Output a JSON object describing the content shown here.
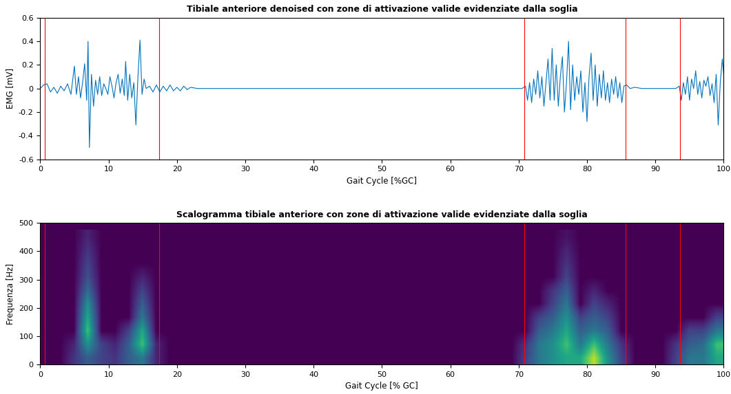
{
  "chart_data": [
    {
      "type": "line",
      "title": "Tibiale anteriore denoised con zone di attivazione valide evidenziate dalla soglia",
      "x_label": "Gait Cycle [%GC]",
      "y_label": "EMG [mV]",
      "color": "#0072bd",
      "x": [
        0,
        0.5,
        1,
        1.5,
        2,
        2.5,
        3,
        3.5,
        4,
        4.5,
        5,
        5.3,
        5.6,
        5.9,
        6.2,
        6.5,
        6.8,
        7.0,
        7.2,
        7.5,
        7.8,
        8.1,
        8.4,
        8.7,
        9.0,
        9.3,
        9.6,
        9.9,
        10.2,
        10.5,
        10.8,
        11.1,
        11.4,
        11.7,
        12.0,
        12.3,
        12.5,
        12.8,
        13.1,
        13.4,
        13.7,
        14.0,
        14.3,
        14.6,
        14.9,
        15.2,
        15.5,
        16.0,
        16.5,
        17.0,
        17.5,
        18,
        18.5,
        19,
        19.5,
        20,
        20.5,
        21,
        21.5,
        22,
        23,
        70.5,
        71,
        71.3,
        71.6,
        71.9,
        72.2,
        72.5,
        72.8,
        73.1,
        73.4,
        73.7,
        74,
        74.3,
        74.6,
        74.9,
        75.2,
        75.5,
        75.8,
        76.1,
        76.4,
        76.7,
        77.0,
        77.3,
        77.6,
        77.9,
        78.2,
        78.5,
        78.8,
        79.1,
        79.4,
        79.7,
        80.0,
        80.3,
        80.6,
        80.9,
        81.2,
        81.5,
        81.8,
        82.1,
        82.4,
        82.7,
        83.0,
        83.3,
        83.6,
        83.9,
        84.2,
        84.5,
        84.8,
        85.1,
        85.4,
        85.8,
        86.3,
        87,
        88,
        93,
        93.5,
        93.8,
        94.1,
        94.4,
        94.7,
        95.0,
        95.3,
        95.6,
        95.9,
        96.2,
        96.5,
        96.8,
        97.1,
        97.4,
        97.7,
        98.0,
        98.3,
        98.6,
        98.9,
        99.2,
        99.5,
        99.8,
        100
      ],
      "values": [
        0,
        0.03,
        0.04,
        -0.03,
        0.01,
        -0.04,
        0.02,
        -0.02,
        0.04,
        -0.05,
        0.19,
        -0.05,
        0.1,
        -0.08,
        0.05,
        0.21,
        -0.1,
        0.4,
        -0.5,
        0.12,
        -0.15,
        0.07,
        -0.05,
        0.1,
        -0.06,
        0.04,
        0.0,
        -0.05,
        0.1,
        0.02,
        -0.08,
        0.05,
        0.12,
        -0.04,
        0.08,
        -0.06,
        0.23,
        -0.1,
        0.12,
        -0.08,
        0.05,
        -0.31,
        0.1,
        0.41,
        -0.05,
        0.08,
        0.0,
        0.02,
        -0.03,
        0.03,
        -0.03,
        0.02,
        -0.02,
        0.03,
        -0.02,
        0.01,
        -0.02,
        0.02,
        -0.01,
        0.01,
        0,
        0,
        0.02,
        -0.1,
        0.05,
        -0.12,
        0.08,
        -0.05,
        0.15,
        -0.08,
        0.1,
        -0.15,
        0.05,
        0.25,
        -0.1,
        0.34,
        -0.1,
        0.2,
        -0.15,
        0.1,
        0.27,
        -0.2,
        0.05,
        0.4,
        -0.18,
        0.2,
        -0.1,
        0.1,
        -0.05,
        0.15,
        -0.2,
        0.05,
        -0.28,
        0.1,
        0.3,
        -0.1,
        0.2,
        -0.15,
        0.12,
        -0.08,
        0.15,
        -0.1,
        0.05,
        -0.12,
        0.08,
        -0.05,
        0.1,
        -0.08,
        0.05,
        -0.12,
        0.02,
        0.03,
        0.0,
        0.01,
        0,
        0,
        0.02,
        -0.1,
        0.05,
        -0.05,
        0.1,
        -0.1,
        0.08,
        0.0,
        0.15,
        -0.05,
        0.06,
        -0.08,
        0.07,
        0.02,
        0.1,
        -0.06,
        0.04,
        -0.12,
        0.12,
        -0.31,
        0.05,
        0.25,
        0.12
      ],
      "activation_bounds": [
        0.7,
        17.4,
        70.8,
        85.6,
        93.6,
        100
      ],
      "xlim": [
        0,
        100
      ],
      "ylim": [
        -0.6,
        0.6
      ],
      "xticks": [
        0,
        10,
        20,
        30,
        40,
        50,
        60,
        70,
        80,
        90,
        100
      ],
      "yticks": [
        -0.6,
        -0.4,
        -0.2,
        0,
        0.2,
        0.4,
        0.6
      ]
    },
    {
      "type": "heatmap",
      "title": "Scalogramma tibiale anteriore con zone di attivazione valide evidenziate dalla soglia",
      "x_label": "Gait Cycle [% GC]",
      "y_label": "Frequenza [Hz]",
      "cells_x_range": [
        0,
        100
      ],
      "cells_y_range": [
        0,
        475
      ],
      "color_range": [
        0,
        1
      ],
      "cells": [
        [
          0,
          0,
          0.15,
          0.3,
          0.2,
          0.15,
          0.3,
          0.4,
          0.1,
          0,
          0,
          0,
          0,
          0,
          0,
          0,
          0,
          0,
          0,
          0,
          0,
          0,
          0,
          0,
          0,
          0,
          0,
          0,
          0,
          0,
          0,
          0,
          0,
          0,
          0,
          0.2,
          0.4,
          0.5,
          0.6,
          0.6,
          0.9,
          0.5,
          0.2,
          0,
          0,
          0,
          0.2,
          0.4,
          0.4,
          0.6
        ],
        [
          0,
          0,
          0.1,
          0.5,
          0.2,
          0.1,
          0.3,
          0.7,
          0.1,
          0,
          0,
          0,
          0,
          0,
          0,
          0,
          0,
          0,
          0,
          0,
          0,
          0,
          0,
          0,
          0,
          0,
          0,
          0,
          0,
          0,
          0,
          0,
          0,
          0,
          0,
          0.15,
          0.4,
          0.5,
          0.7,
          0.4,
          0.7,
          0.4,
          0.15,
          0,
          0,
          0,
          0.15,
          0.3,
          0.35,
          0.7
        ],
        [
          0,
          0,
          0,
          0.7,
          0,
          0,
          0.2,
          0.6,
          0,
          0,
          0,
          0,
          0,
          0,
          0,
          0,
          0,
          0,
          0,
          0,
          0,
          0,
          0,
          0,
          0,
          0,
          0,
          0,
          0,
          0,
          0,
          0,
          0,
          0,
          0,
          0,
          0.3,
          0.4,
          0.6,
          0.3,
          0.4,
          0.3,
          0,
          0,
          0,
          0,
          0,
          0.2,
          0.2,
          0.4
        ],
        [
          0,
          0,
          0,
          0.6,
          0,
          0,
          0,
          0.4,
          0,
          0,
          0,
          0,
          0,
          0,
          0,
          0,
          0,
          0,
          0,
          0,
          0,
          0,
          0,
          0,
          0,
          0,
          0,
          0,
          0,
          0,
          0,
          0,
          0,
          0,
          0,
          0,
          0.2,
          0.3,
          0.5,
          0.2,
          0.3,
          0.2,
          0,
          0,
          0,
          0,
          0,
          0,
          0,
          0.2
        ],
        [
          0,
          0,
          0,
          0.5,
          0,
          0,
          0,
          0.3,
          0,
          0,
          0,
          0,
          0,
          0,
          0,
          0,
          0,
          0,
          0,
          0,
          0,
          0,
          0,
          0,
          0,
          0,
          0,
          0,
          0,
          0,
          0,
          0,
          0,
          0,
          0,
          0,
          0,
          0.2,
          0.4,
          0,
          0.2,
          0.1,
          0,
          0,
          0,
          0,
          0,
          0,
          0,
          0
        ],
        [
          0,
          0,
          0,
          0.35,
          0,
          0,
          0,
          0.2,
          0,
          0,
          0,
          0,
          0,
          0,
          0,
          0,
          0,
          0,
          0,
          0,
          0,
          0,
          0,
          0,
          0,
          0,
          0,
          0,
          0,
          0,
          0,
          0,
          0,
          0,
          0,
          0,
          0,
          0.15,
          0.3,
          0,
          0.1,
          0,
          0,
          0,
          0,
          0,
          0,
          0,
          0,
          0
        ],
        [
          0,
          0,
          0,
          0.25,
          0,
          0,
          0,
          0.1,
          0,
          0,
          0,
          0,
          0,
          0,
          0,
          0,
          0,
          0,
          0,
          0,
          0,
          0,
          0,
          0,
          0,
          0,
          0,
          0,
          0,
          0,
          0,
          0,
          0,
          0,
          0,
          0,
          0,
          0,
          0.2,
          0,
          0,
          0,
          0,
          0,
          0,
          0,
          0,
          0,
          0,
          0
        ],
        [
          0,
          0,
          0,
          0.2,
          0,
          0,
          0,
          0,
          0,
          0,
          0,
          0,
          0,
          0,
          0,
          0,
          0,
          0,
          0,
          0,
          0,
          0,
          0,
          0,
          0,
          0,
          0,
          0,
          0,
          0,
          0,
          0,
          0,
          0,
          0,
          0,
          0,
          0,
          0.15,
          0,
          0,
          0,
          0,
          0,
          0,
          0,
          0,
          0,
          0,
          0
        ],
        [
          0,
          0,
          0,
          0.15,
          0,
          0,
          0,
          0,
          0,
          0,
          0,
          0,
          0,
          0,
          0,
          0,
          0,
          0,
          0,
          0,
          0,
          0,
          0,
          0,
          0,
          0,
          0,
          0,
          0,
          0,
          0,
          0,
          0,
          0,
          0,
          0,
          0,
          0,
          0.1,
          0,
          0,
          0,
          0,
          0,
          0,
          0,
          0,
          0,
          0,
          0
        ],
        [
          0,
          0,
          0,
          0.1,
          0,
          0,
          0,
          0,
          0,
          0,
          0,
          0,
          0,
          0,
          0,
          0,
          0,
          0,
          0,
          0,
          0,
          0,
          0,
          0,
          0,
          0,
          0,
          0,
          0,
          0,
          0,
          0,
          0,
          0,
          0,
          0,
          0,
          0,
          0.05,
          0,
          0,
          0,
          0,
          0,
          0,
          0,
          0,
          0,
          0,
          0
        ]
      ],
      "activation_bounds": [
        0.7,
        17.4,
        70.8,
        85.6,
        93.6,
        100
      ],
      "xlim": [
        0,
        100
      ],
      "ylim": [
        0,
        500
      ],
      "xticks": [
        0,
        10,
        20,
        30,
        40,
        50,
        60,
        70,
        80,
        90,
        100
      ],
      "yticks": [
        0,
        100,
        200,
        300,
        400,
        500
      ]
    }
  ]
}
